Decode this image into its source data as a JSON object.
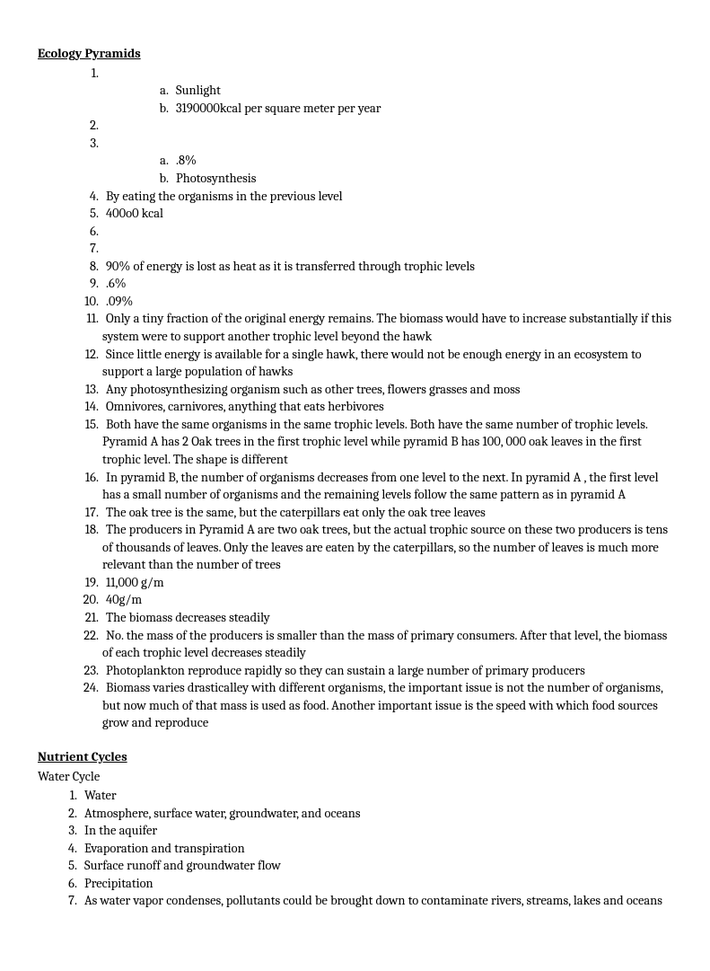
{
  "section1": {
    "title": "Ecology Pyramids",
    "items": [
      {
        "text": "",
        "sub": [
          "Sunlight",
          "3190000kcal per square meter per year"
        ]
      },
      {
        "text": ""
      },
      {
        "text": "",
        "sub": [
          ".8%",
          "Photosynthesis"
        ]
      },
      {
        "text": "By eating the organisms in the previous level"
      },
      {
        "text": "400o0 kcal"
      },
      {
        "text": ""
      },
      {
        "text": ""
      },
      {
        "text": "90% of energy is lost as heat as it is transferred through trophic levels"
      },
      {
        "text": ".6%"
      },
      {
        "text": ".09%"
      },
      {
        "text": "Only a tiny fraction of the original energy remains. The biomass would have to increase substantially if this system were to support another trophic level beyond the hawk"
      },
      {
        "text": "Since little energy is available for a single hawk, there would not be enough energy in an ecosystem to support a large population of hawks"
      },
      {
        "text": "Any photosynthesizing organism such as other trees, flowers grasses and moss"
      },
      {
        "text": "Omnivores, carnivores, anything that eats herbivores"
      },
      {
        "text": "Both have the same organisms in the same trophic levels. Both have the same number of trophic levels. Pyramid A has 2 Oak trees in the first trophic level while pyramid B has 100, 000 oak leaves in the first trophic level. The shape is different"
      },
      {
        "text": "In pyramid B, the number of organisms decreases from one level to the next. In pyramid A , the first level has a small number of organisms and the remaining levels follow the same pattern as in pyramid A"
      },
      {
        "text": "The oak tree is the same, but the caterpillars eat only the oak tree leaves"
      },
      {
        "text": "The producers in Pyramid A are two oak trees, but the actual trophic source on these two producers is tens of thousands of leaves. Only the leaves are eaten by the caterpillars, so the number of leaves is much more relevant than the number of trees"
      },
      {
        "text": "11,000 g/m"
      },
      {
        "text": "40g/m"
      },
      {
        "text": "The biomass decreases steadily"
      },
      {
        "text": "No. the mass of the producers is smaller than the mass of primary consumers. After that level, the biomass of each trophic level decreases steadily"
      },
      {
        "text": "Photoplankton reproduce rapidly so they can sustain a large number of primary producers"
      },
      {
        "text": "Biomass varies drasticalley with different organisms, the important issue is not the number of organisms, but now much of that mass is used as food. Another important issue is the speed with which food sources grow and reproduce"
      }
    ]
  },
  "section2": {
    "title": "Nutrient Cycles",
    "subtitle": "Water Cycle",
    "items": [
      {
        "text": "Water"
      },
      {
        "text": "Atmosphere, surface water, groundwater, and oceans"
      },
      {
        "text": "In the aquifer"
      },
      {
        "text": "Evaporation and transpiration"
      },
      {
        "text": "Surface runoff and groundwater flow"
      },
      {
        "text": "Precipitation"
      },
      {
        "text": "As water vapor condenses, pollutants could be brought down to contaminate rivers, streams, lakes and oceans"
      }
    ]
  }
}
